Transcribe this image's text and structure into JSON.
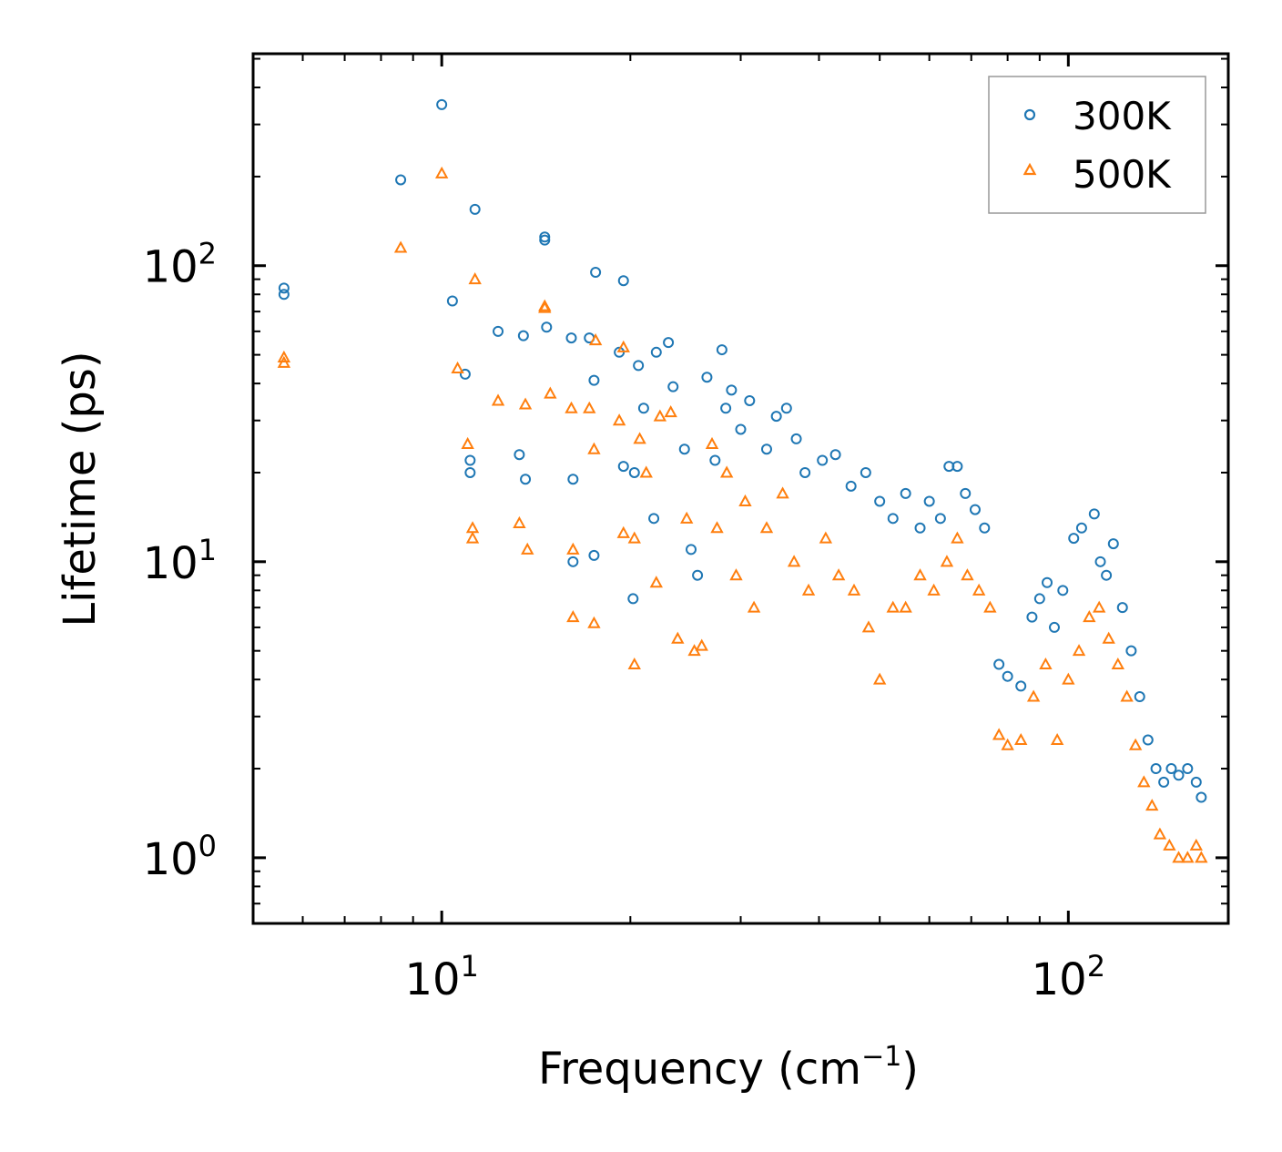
{
  "chart_data": {
    "type": "scatter",
    "xscale": "log",
    "yscale": "log",
    "xlim": [
      5,
      180
    ],
    "ylim": [
      0.6,
      520
    ],
    "xlabel": "Frequency (cm",
    "xlabel_sup": "−1",
    "xlabel_end": ")",
    "ylabel": "Lifetime (ps)",
    "x_ticks": [
      {
        "value": 10,
        "base": "10",
        "exp": "1"
      },
      {
        "value": 100,
        "base": "10",
        "exp": "2"
      }
    ],
    "y_ticks": [
      {
        "value": 1,
        "base": "10",
        "exp": "0"
      },
      {
        "value": 10,
        "base": "10",
        "exp": "1"
      },
      {
        "value": 100,
        "base": "10",
        "exp": "2"
      }
    ],
    "legend": {
      "position": "top-right"
    },
    "series": [
      {
        "name": "300K",
        "marker": "circle",
        "color": "#1f77b4",
        "points": [
          [
            5.6,
            84
          ],
          [
            5.6,
            80
          ],
          [
            8.6,
            195
          ],
          [
            10.0,
            350
          ],
          [
            10.4,
            76
          ],
          [
            10.9,
            43
          ],
          [
            11.1,
            22
          ],
          [
            11.1,
            20
          ],
          [
            11.3,
            155
          ],
          [
            12.3,
            60
          ],
          [
            13.3,
            23
          ],
          [
            13.5,
            58
          ],
          [
            13.6,
            19
          ],
          [
            14.6,
            125
          ],
          [
            14.6,
            122
          ],
          [
            14.7,
            62
          ],
          [
            16.1,
            57
          ],
          [
            16.2,
            10
          ],
          [
            16.2,
            19
          ],
          [
            17.2,
            57
          ],
          [
            17.5,
            41
          ],
          [
            17.6,
            95
          ],
          [
            17.5,
            10.5
          ],
          [
            19.2,
            51
          ],
          [
            19.5,
            89
          ],
          [
            19.5,
            21
          ],
          [
            20.3,
            20
          ],
          [
            20.2,
            7.5
          ],
          [
            20.6,
            46
          ],
          [
            21.0,
            33
          ],
          [
            21.8,
            14
          ],
          [
            22.0,
            51
          ],
          [
            23.0,
            55
          ],
          [
            23.4,
            39
          ],
          [
            24.4,
            24
          ],
          [
            25.0,
            11
          ],
          [
            25.6,
            9
          ],
          [
            26.5,
            42
          ],
          [
            27.3,
            22
          ],
          [
            28.0,
            52
          ],
          [
            28.4,
            33
          ],
          [
            29.0,
            38
          ],
          [
            30.0,
            28
          ],
          [
            31.0,
            35
          ],
          [
            33.0,
            24
          ],
          [
            34.2,
            31
          ],
          [
            35.5,
            33
          ],
          [
            36.8,
            26
          ],
          [
            38.0,
            20
          ],
          [
            40.5,
            22
          ],
          [
            42.5,
            23
          ],
          [
            45.0,
            18
          ],
          [
            47.5,
            20
          ],
          [
            50.0,
            16
          ],
          [
            52.5,
            14
          ],
          [
            55.0,
            17
          ],
          [
            58.0,
            13
          ],
          [
            60.0,
            16
          ],
          [
            62.5,
            14
          ],
          [
            64.5,
            21
          ],
          [
            66.5,
            21
          ],
          [
            68.5,
            17
          ],
          [
            71.0,
            15
          ],
          [
            73.5,
            13
          ],
          [
            77.5,
            4.5
          ],
          [
            80.0,
            4.1
          ],
          [
            84.0,
            3.8
          ],
          [
            87.5,
            6.5
          ],
          [
            90.0,
            7.5
          ],
          [
            92.5,
            8.5
          ],
          [
            95.0,
            6.0
          ],
          [
            98.0,
            8.0
          ],
          [
            102.0,
            12.0
          ],
          [
            105.0,
            13.0
          ],
          [
            110.0,
            14.5
          ],
          [
            112.5,
            10.0
          ],
          [
            115.0,
            9.0
          ],
          [
            118.0,
            11.5
          ],
          [
            122.0,
            7.0
          ],
          [
            126.0,
            5.0
          ],
          [
            130.0,
            3.5
          ],
          [
            134.0,
            2.5
          ],
          [
            138.0,
            2.0
          ],
          [
            142.0,
            1.8
          ],
          [
            146.0,
            2.0
          ],
          [
            150.0,
            1.9
          ],
          [
            155.0,
            2.0
          ],
          [
            160.0,
            1.8
          ],
          [
            163.0,
            1.6
          ]
        ]
      },
      {
        "name": "500K",
        "marker": "triangle",
        "color": "#ff7f0e",
        "points": [
          [
            5.6,
            49
          ],
          [
            5.6,
            47
          ],
          [
            8.6,
            115
          ],
          [
            10.0,
            205
          ],
          [
            10.6,
            45
          ],
          [
            11.0,
            25
          ],
          [
            11.2,
            13
          ],
          [
            11.2,
            12
          ],
          [
            11.3,
            90
          ],
          [
            12.3,
            35
          ],
          [
            13.3,
            13.5
          ],
          [
            13.6,
            34
          ],
          [
            13.7,
            11
          ],
          [
            14.6,
            73
          ],
          [
            14.6,
            72
          ],
          [
            14.9,
            37
          ],
          [
            16.1,
            33
          ],
          [
            16.2,
            6.5
          ],
          [
            16.2,
            11
          ],
          [
            17.2,
            33
          ],
          [
            17.5,
            24
          ],
          [
            17.6,
            56
          ],
          [
            17.5,
            6.2
          ],
          [
            19.2,
            30
          ],
          [
            19.5,
            53
          ],
          [
            19.5,
            12.5
          ],
          [
            20.3,
            12
          ],
          [
            20.3,
            4.5
          ],
          [
            20.7,
            26
          ],
          [
            21.2,
            20
          ],
          [
            22.0,
            8.5
          ],
          [
            22.3,
            31
          ],
          [
            23.2,
            32
          ],
          [
            23.8,
            5.5
          ],
          [
            24.6,
            14
          ],
          [
            25.3,
            5
          ],
          [
            26.0,
            5.2
          ],
          [
            27.0,
            25
          ],
          [
            27.5,
            13
          ],
          [
            28.5,
            20
          ],
          [
            29.5,
            9
          ],
          [
            30.5,
            16
          ],
          [
            31.5,
            7
          ],
          [
            33.0,
            13
          ],
          [
            35.0,
            17
          ],
          [
            36.5,
            10
          ],
          [
            38.5,
            8
          ],
          [
            41.0,
            12
          ],
          [
            43.0,
            9
          ],
          [
            45.5,
            8
          ],
          [
            48.0,
            6
          ],
          [
            50.0,
            4
          ],
          [
            52.5,
            7
          ],
          [
            55.0,
            7
          ],
          [
            58.0,
            9
          ],
          [
            61.0,
            8
          ],
          [
            64.0,
            10
          ],
          [
            66.5,
            12
          ],
          [
            69.0,
            9
          ],
          [
            72.0,
            8
          ],
          [
            75.0,
            7
          ],
          [
            77.5,
            2.6
          ],
          [
            80.0,
            2.4
          ],
          [
            84.0,
            2.5
          ],
          [
            88.0,
            3.5
          ],
          [
            92.0,
            4.5
          ],
          [
            96.0,
            2.5
          ],
          [
            100.0,
            4.0
          ],
          [
            104.0,
            5.0
          ],
          [
            108.0,
            6.5
          ],
          [
            112.0,
            7.0
          ],
          [
            116.0,
            5.5
          ],
          [
            120.0,
            4.5
          ],
          [
            124.0,
            3.5
          ],
          [
            128.0,
            2.4
          ],
          [
            132.0,
            1.8
          ],
          [
            136.0,
            1.5
          ],
          [
            140.0,
            1.2
          ],
          [
            145.0,
            1.1
          ],
          [
            150.0,
            1.0
          ],
          [
            155.0,
            1.0
          ],
          [
            160.0,
            1.1
          ],
          [
            163.0,
            1.0
          ]
        ]
      }
    ]
  }
}
